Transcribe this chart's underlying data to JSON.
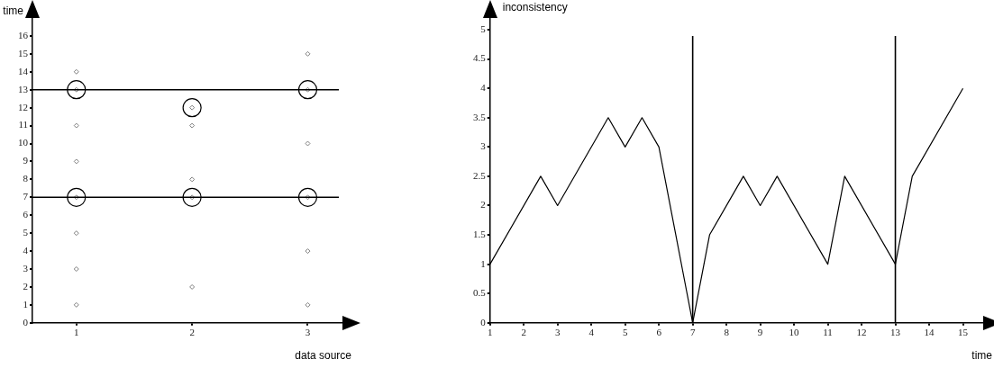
{
  "chart_data": [
    {
      "type": "scatter",
      "xlabel": "data source",
      "ylabel": "time",
      "xlim": [
        0.62,
        3.3
      ],
      "xticks": [
        1,
        2,
        3
      ],
      "ylim": [
        0,
        17
      ],
      "yticks": [
        0,
        1,
        2,
        3,
        4,
        5,
        6,
        7,
        8,
        9,
        10,
        11,
        12,
        13,
        14,
        15,
        16
      ],
      "grid": false,
      "ref_lines": [
        {
          "axis": "y",
          "value": 13
        },
        {
          "axis": "y",
          "value": 7
        }
      ],
      "series": [
        {
          "color": "#808080",
          "marker": "diamond",
          "x": [
            1,
            1,
            1,
            1,
            1,
            1,
            1,
            1,
            2,
            2,
            2,
            2,
            2,
            3,
            3,
            3,
            3,
            3,
            3
          ],
          "values": [
            14,
            13,
            11,
            9,
            7,
            5,
            3,
            1,
            12,
            11,
            8,
            7,
            2,
            15,
            13,
            10,
            7,
            4,
            1
          ]
        },
        {
          "color": "#000000",
          "marker": "circle",
          "x": [
            1,
            3,
            2,
            1,
            2,
            3
          ],
          "values": [
            13,
            13,
            12,
            7,
            7,
            7
          ]
        }
      ]
    },
    {
      "type": "line",
      "xlabel": "time",
      "ylabel": "inconsistency",
      "xlim": [
        1,
        15.6
      ],
      "xticks": [
        1,
        2,
        3,
        4,
        5,
        6,
        7,
        8,
        9,
        10,
        11,
        12,
        13,
        14,
        15
      ],
      "ylim": [
        0,
        5.2
      ],
      "yticks": [
        0,
        0.5,
        1,
        1.5,
        2,
        2.5,
        3,
        3.5,
        4,
        4.5,
        5
      ],
      "grid": false,
      "marker": "none",
      "line_style": "solid",
      "ref_lines": [
        {
          "axis": "x",
          "value": 7
        },
        {
          "axis": "x",
          "value": 13
        }
      ],
      "series": [
        {
          "color": "#000000",
          "x": [
            1,
            2.5,
            3,
            4.5,
            5,
            5.5,
            6,
            7,
            7.5,
            8.5,
            9,
            9.5,
            11,
            11.5,
            13,
            13.5,
            15
          ],
          "values": [
            1,
            2.5,
            2,
            3.5,
            3,
            3.5,
            3,
            0,
            1.5,
            2.5,
            2,
            2.5,
            1,
            2.5,
            1,
            2.5,
            4
          ]
        }
      ]
    }
  ]
}
